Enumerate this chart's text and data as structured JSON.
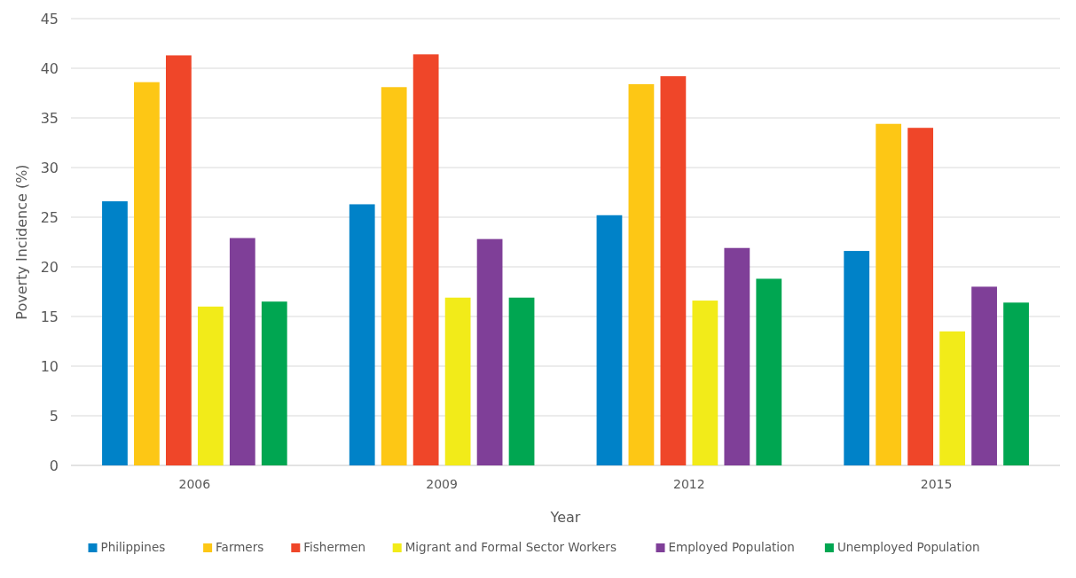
{
  "chart_data": {
    "type": "bar",
    "xlabel": "Year",
    "ylabel": "Poverty Incidence (%)",
    "categories": [
      "2006",
      "2009",
      "2012",
      "2015"
    ],
    "series": [
      {
        "name": "Philippines",
        "color": "#0082c8",
        "values": [
          26.6,
          26.3,
          25.2,
          21.6
        ]
      },
      {
        "name": "Farmers",
        "color": "#fdc715",
        "values": [
          38.6,
          38.1,
          38.4,
          34.4
        ]
      },
      {
        "name": "Fishermen",
        "color": "#ef4629",
        "values": [
          41.3,
          41.4,
          39.2,
          34.0
        ]
      },
      {
        "name": "Migrant and Formal Sector Workers",
        "color": "#f2eb19",
        "values": [
          16.0,
          16.9,
          16.6,
          13.5
        ]
      },
      {
        "name": "Employed Population",
        "color": "#7f3f98",
        "values": [
          22.9,
          22.8,
          21.9,
          18.0
        ]
      },
      {
        "name": "Unemployed Population",
        "color": "#00a651",
        "values": [
          16.5,
          16.9,
          18.8,
          16.4
        ]
      }
    ],
    "ylim": [
      0,
      45
    ],
    "yticks": [
      0,
      5,
      10,
      15,
      20,
      25,
      30,
      35,
      40,
      45
    ],
    "grid": "y",
    "legend": "bottom"
  }
}
